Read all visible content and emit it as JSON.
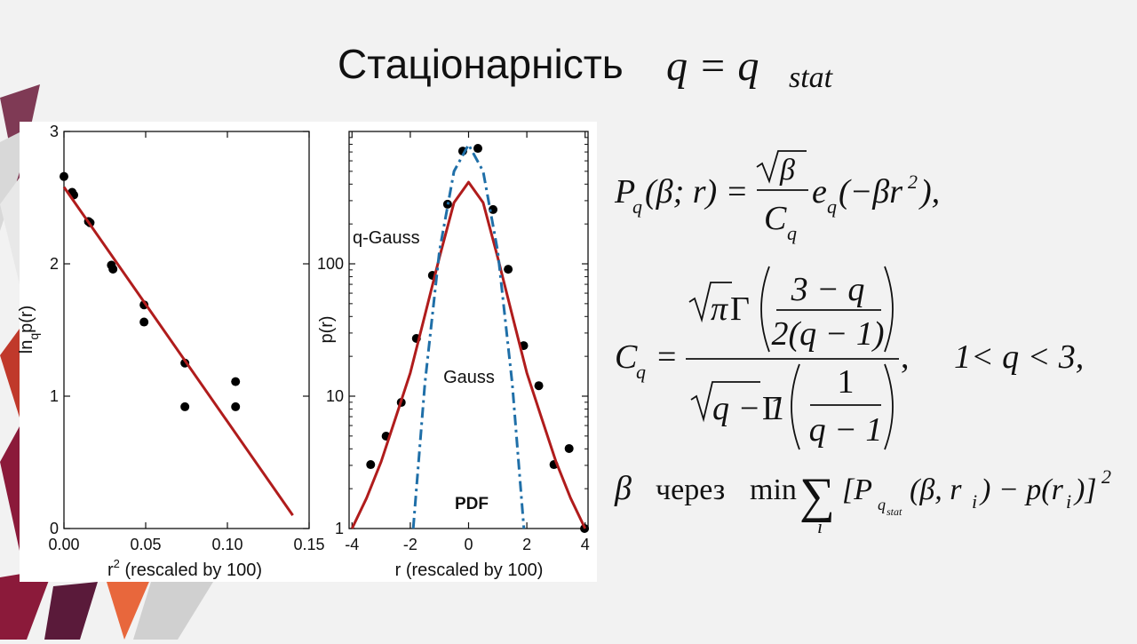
{
  "title": [
    "Стаціонарність",
    "q = q",
    "stat"
  ],
  "chart_data": [
    {
      "type": "scatter",
      "xlabel": [
        "r",
        "2",
        " (rescaled by 100)"
      ],
      "ylabel": [
        "ln",
        "q",
        "p(r)"
      ],
      "xlim": [
        0,
        0.15
      ],
      "ylim": [
        0,
        3
      ],
      "xticks": [
        {
          "value": 0,
          "label": "0.00"
        },
        0.05,
        {
          "value": 0.1,
          "label": "0.10"
        },
        0.15
      ],
      "yticks": [
        0,
        1,
        2,
        3
      ],
      "series": [
        {
          "mode": "markers",
          "color": "#000000",
          "x": [
            0.0,
            0.005,
            0.006,
            0.015,
            0.016,
            0.029,
            0.03,
            0.049,
            0.049,
            0.074,
            0.074,
            0.105,
            0.105
          ],
          "values": [
            2.66,
            2.54,
            2.52,
            2.32,
            2.31,
            1.99,
            1.96,
            1.69,
            1.56,
            1.25,
            0.92,
            1.11,
            0.92
          ]
        },
        {
          "mode": "lines",
          "color": "#b01c1c",
          "x": [
            0,
            0.14
          ],
          "values": [
            2.58,
            0.1
          ]
        }
      ]
    },
    {
      "type": "scatter",
      "ylog": true,
      "xlabel": [
        "r (rescaled by 100)"
      ],
      "ylabel": [
        "p(r)"
      ],
      "xlim": [
        -4.1,
        4.1
      ],
      "ylim": [
        1,
        1000
      ],
      "xticks": [
        -4,
        -2,
        0,
        2,
        4
      ],
      "yticks": [
        1,
        10,
        100
      ],
      "annotations": [
        "PDF"
      ],
      "series": [
        {
          "mode": "markers",
          "color": "#000000",
          "x": [
            -3.36,
            -2.83,
            -2.31,
            -1.79,
            -1.24,
            -0.72,
            -0.2,
            0.32,
            0.84,
            1.36,
            1.89,
            2.41,
            2.93,
            3.45,
            3.98
          ],
          "values": [
            3.04,
            4.99,
            8.97,
            27.3,
            81.8,
            282,
            711,
            745,
            257,
            91,
            24.1,
            12.0,
            3.04,
            4.02,
            1.0
          ]
        },
        {
          "name": "q-Gauss",
          "mode": "lines",
          "color": "#b01c1c",
          "x": [
            -4,
            -3.5,
            -3,
            -2.5,
            -2,
            -1.5,
            -1,
            -0.5,
            0,
            0.5,
            1,
            1.5,
            2,
            2.5,
            3,
            3.5,
            4
          ],
          "values": [
            1,
            1.7,
            3.2,
            6.9,
            15,
            40.8,
            112,
            290,
            414,
            290,
            112,
            40.8,
            15,
            6.9,
            3.2,
            1.7,
            1
          ]
        },
        {
          "name": "Gauss",
          "mode": "lines",
          "dash": "dashdot",
          "color": "#1f6fa8",
          "x": [
            -1.9,
            -1.5,
            -1,
            -0.5,
            0,
            0.5,
            1,
            1.5,
            1.9
          ],
          "values": [
            1,
            12.4,
            125,
            500,
            795,
            500,
            125,
            12.4,
            1
          ]
        }
      ]
    }
  ],
  "formulas": [
    [
      "P",
      "q",
      "(β; r) =",
      "β",
      "C",
      "q",
      "e",
      "q",
      "(−βr",
      "2",
      "),"
    ],
    [
      "C",
      "q",
      "=",
      "π",
      "Γ",
      "3 − q",
      "2(q − 1)",
      "q − 1",
      "Γ",
      "1",
      "q − 1",
      ",",
      "1< q < 3,"
    ],
    [
      "β",
      "через",
      "min",
      "∑",
      "i",
      "[P",
      "q",
      "stat",
      "(β, r",
      "i",
      ") − p(r",
      "i",
      ")]",
      "2"
    ]
  ]
}
